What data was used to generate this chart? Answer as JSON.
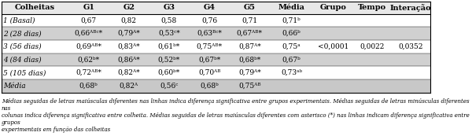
{
  "headers": [
    "Colheitas",
    "G1",
    "G2",
    "G3",
    "G4",
    "G5",
    "Média",
    "Grupo",
    "Tempo",
    "Interação"
  ],
  "rows": [
    [
      "1 (Basal)",
      "0,67",
      "0,82",
      "0,58",
      "0,76",
      "0,71",
      "0,71ᵇ"
    ],
    [
      "2 (28 dias)",
      "0,66ᴬᴮᶜ*",
      "0,79ᴬ*",
      "0,53ᶜ*",
      "0,63ᴮᶜ*",
      "0,67ᴬᴮ*",
      "0,66ᵇ"
    ],
    [
      "3 (56 dias)",
      "0,69ᴬᴮ*",
      "0,83ᴬ*",
      "0,61ᵇ*",
      "0,75ᴬᴮ*",
      "0,87ᴬ*",
      "0,75ᵃ"
    ],
    [
      "4 (84 dias)",
      "0,62ᵇ*",
      "0,86ᴬ*",
      "0,52ᵇ*",
      "0,67ᵇ*",
      "0,68ᵇ*",
      "0,67ᵇ"
    ],
    [
      "5 (105 dias)",
      "0,72ᴬᴮ*",
      "0,82ᴬ*",
      "0,60ᵇ*",
      "0,70ᴬᴮ",
      "0,79ᴬ*",
      "0,73ᵃᵇ"
    ],
    [
      "Média",
      "0,68ᵇ",
      "0,82ᴬ",
      "0,56ᶜ",
      "0,68ᵇ",
      "0,75ᴬᴮ",
      ""
    ]
  ],
  "stat_row_index": 2,
  "stat_values": [
    "<0,0001",
    "0,0022",
    "0,0352"
  ],
  "footer_text": "Médias seguidas de letras maiúsculas diferentes nas linhas indica diferença significativa entre grupos experimentais. Médias seguidas de letras minúsculas diferentes nas\ncolunas indica diferença significativa entre colheita. Médias seguidas de letras maiúsculas diferentes com asterisco (*) nas linhas indicam diferença significativa entre grupos\nexperimentais em função das colheitas",
  "shaded_rows": [
    1,
    3
  ],
  "shaded_color": "#d0d0d0",
  "header_bg": "#e8e8e8",
  "media_row_bg": "#c8c8c8",
  "white_bg": "#ffffff",
  "border_color": "#000000",
  "font_size_table": 6.5,
  "font_size_footer": 5.0,
  "header_font_size": 7.0
}
